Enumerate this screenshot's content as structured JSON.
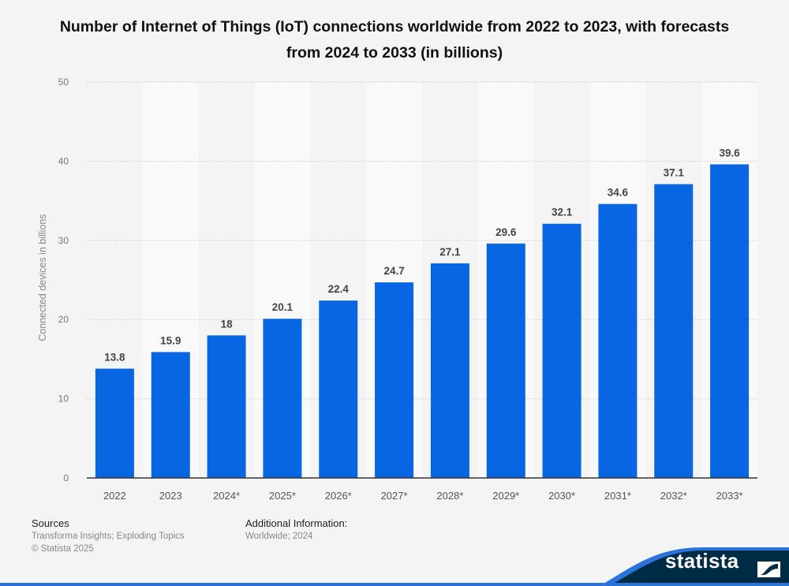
{
  "chart_data": {
    "type": "bar",
    "title": "Number of Internet of Things (IoT) connections worldwide from 2022 to 2023, with forecasts from 2024 to 2033 (in billions)",
    "xlabel": "",
    "ylabel": "Connected devices in billions",
    "categories": [
      "2022",
      "2023",
      "2024*",
      "2025*",
      "2026*",
      "2027*",
      "2028*",
      "2029*",
      "2030*",
      "2031*",
      "2032*",
      "2033*"
    ],
    "values": [
      13.8,
      15.9,
      18,
      20.1,
      22.4,
      24.7,
      27.1,
      29.6,
      32.1,
      34.6,
      37.1,
      39.6
    ],
    "value_labels": [
      "13.8",
      "15.9",
      "18",
      "20.1",
      "22.4",
      "24.7",
      "27.1",
      "29.6",
      "32.1",
      "34.6",
      "37.1",
      "39.6"
    ],
    "ylim": [
      0,
      50
    ],
    "yticks": [
      0,
      10,
      20,
      30,
      40,
      50
    ],
    "grid": true,
    "legend": "none",
    "bar_color": "#0866e3"
  },
  "footer": {
    "sources_heading": "Sources",
    "sources_text": "Transforma Insights; Exploding Topics",
    "copyright": "© Statista 2025",
    "additional_heading": "Additional Information:",
    "additional_text": "Worldwide; 2024"
  },
  "brand": {
    "logo_text": "statista",
    "logo_bg": "#002b45",
    "accent": "#2a73db"
  }
}
